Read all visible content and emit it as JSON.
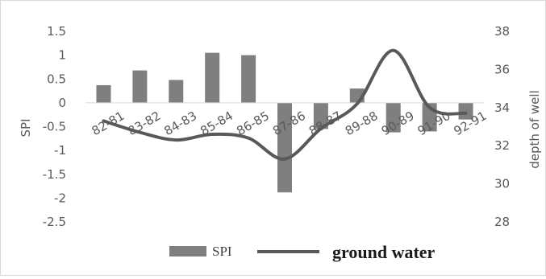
{
  "chart_data": {
    "type": "bar+line",
    "categories": [
      "82-81",
      "83-82",
      "84-83",
      "85-84",
      "86-85",
      "87-86",
      "88-87",
      "89-88",
      "90-89",
      "91-90",
      "92-91"
    ],
    "series": [
      {
        "name": "SPI",
        "type": "bar",
        "axis": "left",
        "values": [
          0.37,
          0.68,
          0.48,
          1.05,
          1.0,
          -1.88,
          -0.55,
          0.3,
          -0.62,
          -0.6,
          -0.35
        ]
      },
      {
        "name": "ground water",
        "type": "line",
        "axis": "right",
        "values": [
          33.3,
          32.7,
          32.3,
          32.6,
          32.4,
          31.3,
          32.9,
          34.2,
          37.0,
          34.0,
          33.7
        ]
      }
    ],
    "left_axis": {
      "label": "SPI",
      "ylim": [
        -2.5,
        1.5
      ],
      "ticks": [
        "1.5",
        "1",
        "0.5",
        "0",
        "-0.5",
        "-1",
        "-1.5",
        "-2",
        "-2.5"
      ]
    },
    "right_axis": {
      "label": "depth of well",
      "ylim": [
        28,
        38
      ],
      "ticks": [
        "38",
        "36",
        "34",
        "32",
        "30",
        "28"
      ]
    },
    "legend": {
      "position": "bottom",
      "items": [
        "SPI",
        "ground water"
      ]
    },
    "grid": false,
    "colors": {
      "bar": "#7f7f7f",
      "line": "#595959",
      "text": "#595959"
    }
  }
}
